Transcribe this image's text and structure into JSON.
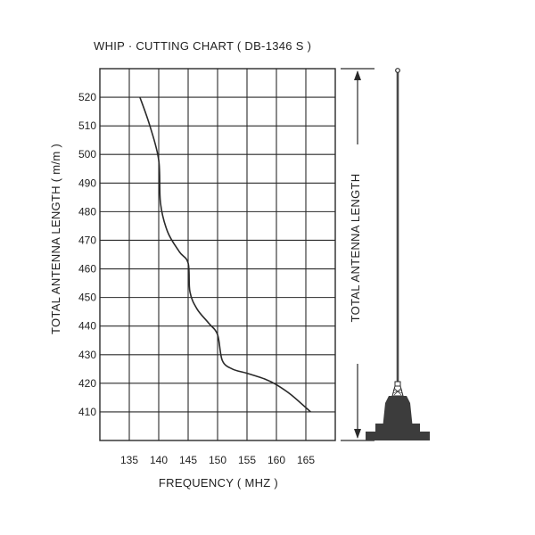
{
  "chart_data": {
    "type": "line",
    "title": "WHIP  ·  CUTTING CHART  ( DB-1346 S )",
    "xlabel": "FREQUENCY  ( MHZ )",
    "ylabel": "TOTAL ANTENNA LENGTH ( m/m )",
    "side_label": "TOTAL ANTENNA LENGTH",
    "xlim": [
      130,
      170
    ],
    "ylim": [
      400,
      530
    ],
    "x_ticks": [
      135,
      140,
      145,
      150,
      155,
      160,
      165
    ],
    "y_ticks": [
      410,
      420,
      430,
      440,
      450,
      460,
      470,
      480,
      490,
      500,
      510,
      520
    ],
    "grid": true,
    "series": [
      {
        "x": [
          136.8,
          138.5,
          140.0,
          140.3,
          141.5,
          143.5,
          145.0,
          145.3,
          146.5,
          148.5,
          150.0,
          150.8,
          152.5,
          155.0,
          158.0,
          160.0,
          162.5,
          165.8
        ],
        "y": [
          520,
          510,
          498,
          483,
          473,
          466,
          462,
          452,
          446,
          441,
          437,
          428,
          425,
          423.5,
          421.5,
          419.5,
          416,
          410
        ]
      }
    ]
  },
  "colors": {
    "ink": "#2a2a2a",
    "antenna_base": "#3c3c3c"
  },
  "icons": {
    "antenna": "whip-antenna-illustration"
  }
}
